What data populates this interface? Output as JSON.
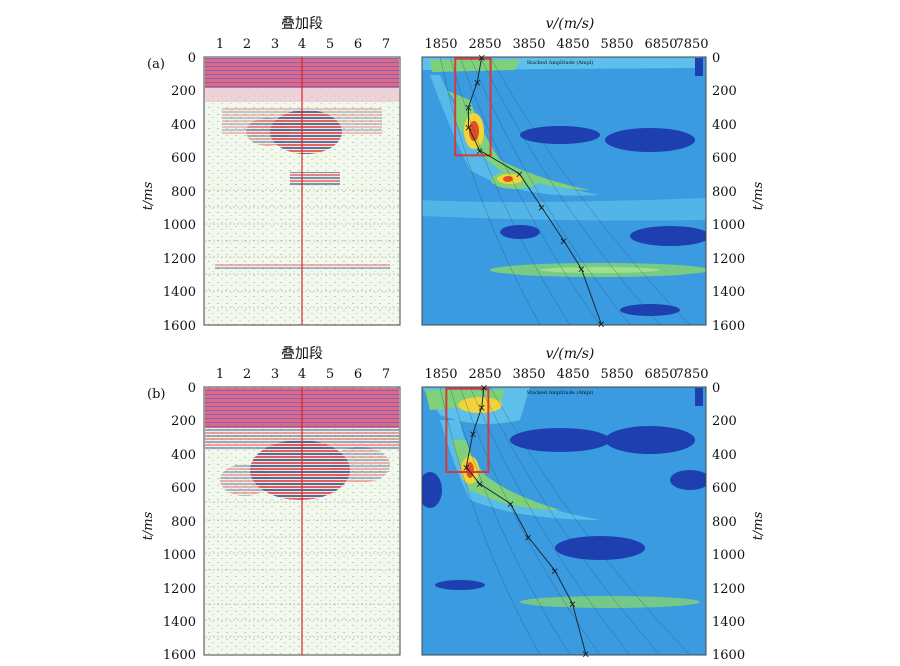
{
  "panels": [
    {
      "label": "(a)",
      "gather_title": "叠加段",
      "trace_ticks": [
        "1",
        "2",
        "3",
        "4",
        "5",
        "6",
        "7"
      ],
      "time_ticks": [
        "0",
        "200",
        "400",
        "600",
        "800",
        "1000",
        "1200",
        "1400",
        "1600"
      ],
      "time_axis_label": "t/ms",
      "velocity_label": "v/(m/s)",
      "velocity_ticks": [
        "1850",
        "2850",
        "3850",
        "4850",
        "5850",
        "6850",
        "7850"
      ],
      "energy_label": "Stacked Amplitude (Ampl)",
      "picks": [
        {
          "v": 2850,
          "t": 0
        },
        {
          "v": 2750,
          "t": 150
        },
        {
          "v": 2550,
          "t": 300
        },
        {
          "v": 2550,
          "t": 420
        },
        {
          "v": 2800,
          "t": 560
        },
        {
          "v": 3700,
          "t": 700
        },
        {
          "v": 4200,
          "t": 900
        },
        {
          "v": 4700,
          "t": 1100
        },
        {
          "v": 5100,
          "t": 1270
        },
        {
          "v": 5550,
          "t": 1600
        }
      ],
      "highlight_box": {
        "v_min": 2250,
        "v_max": 3050,
        "t_min": 10,
        "t_max": 590
      }
    },
    {
      "label": "(b)",
      "gather_title": "叠加段",
      "trace_ticks": [
        "1",
        "2",
        "3",
        "4",
        "5",
        "6",
        "7"
      ],
      "time_ticks": [
        "0",
        "200",
        "400",
        "600",
        "800",
        "1000",
        "1200",
        "1400",
        "1600"
      ],
      "time_axis_label": "t/ms",
      "velocity_label": "v/(m/s)",
      "velocity_ticks": [
        "1850",
        "2850",
        "3850",
        "4850",
        "5850",
        "6850",
        "7850"
      ],
      "energy_label": "Stacked Amplitude (Ampl)",
      "picks": [
        {
          "v": 2900,
          "t": 0
        },
        {
          "v": 2850,
          "t": 120
        },
        {
          "v": 2650,
          "t": 280
        },
        {
          "v": 2500,
          "t": 480
        },
        {
          "v": 2800,
          "t": 580
        },
        {
          "v": 3500,
          "t": 700
        },
        {
          "v": 3900,
          "t": 900
        },
        {
          "v": 4500,
          "t": 1100
        },
        {
          "v": 4900,
          "t": 1300
        },
        {
          "v": 5200,
          "t": 1600
        }
      ],
      "highlight_box": {
        "v_min": 2050,
        "v_max": 3000,
        "t_min": 10,
        "t_max": 510
      }
    }
  ],
  "colors": {
    "energy_background": "#3a9be0",
    "energy_low": "#1e3fb0",
    "energy_mid": "#5ec0ea",
    "energy_green": "#7fd07a",
    "energy_high": "#f2d43a",
    "energy_peak": "#e05020",
    "box": "#d63a3a",
    "axis_line": "#d8262a"
  }
}
